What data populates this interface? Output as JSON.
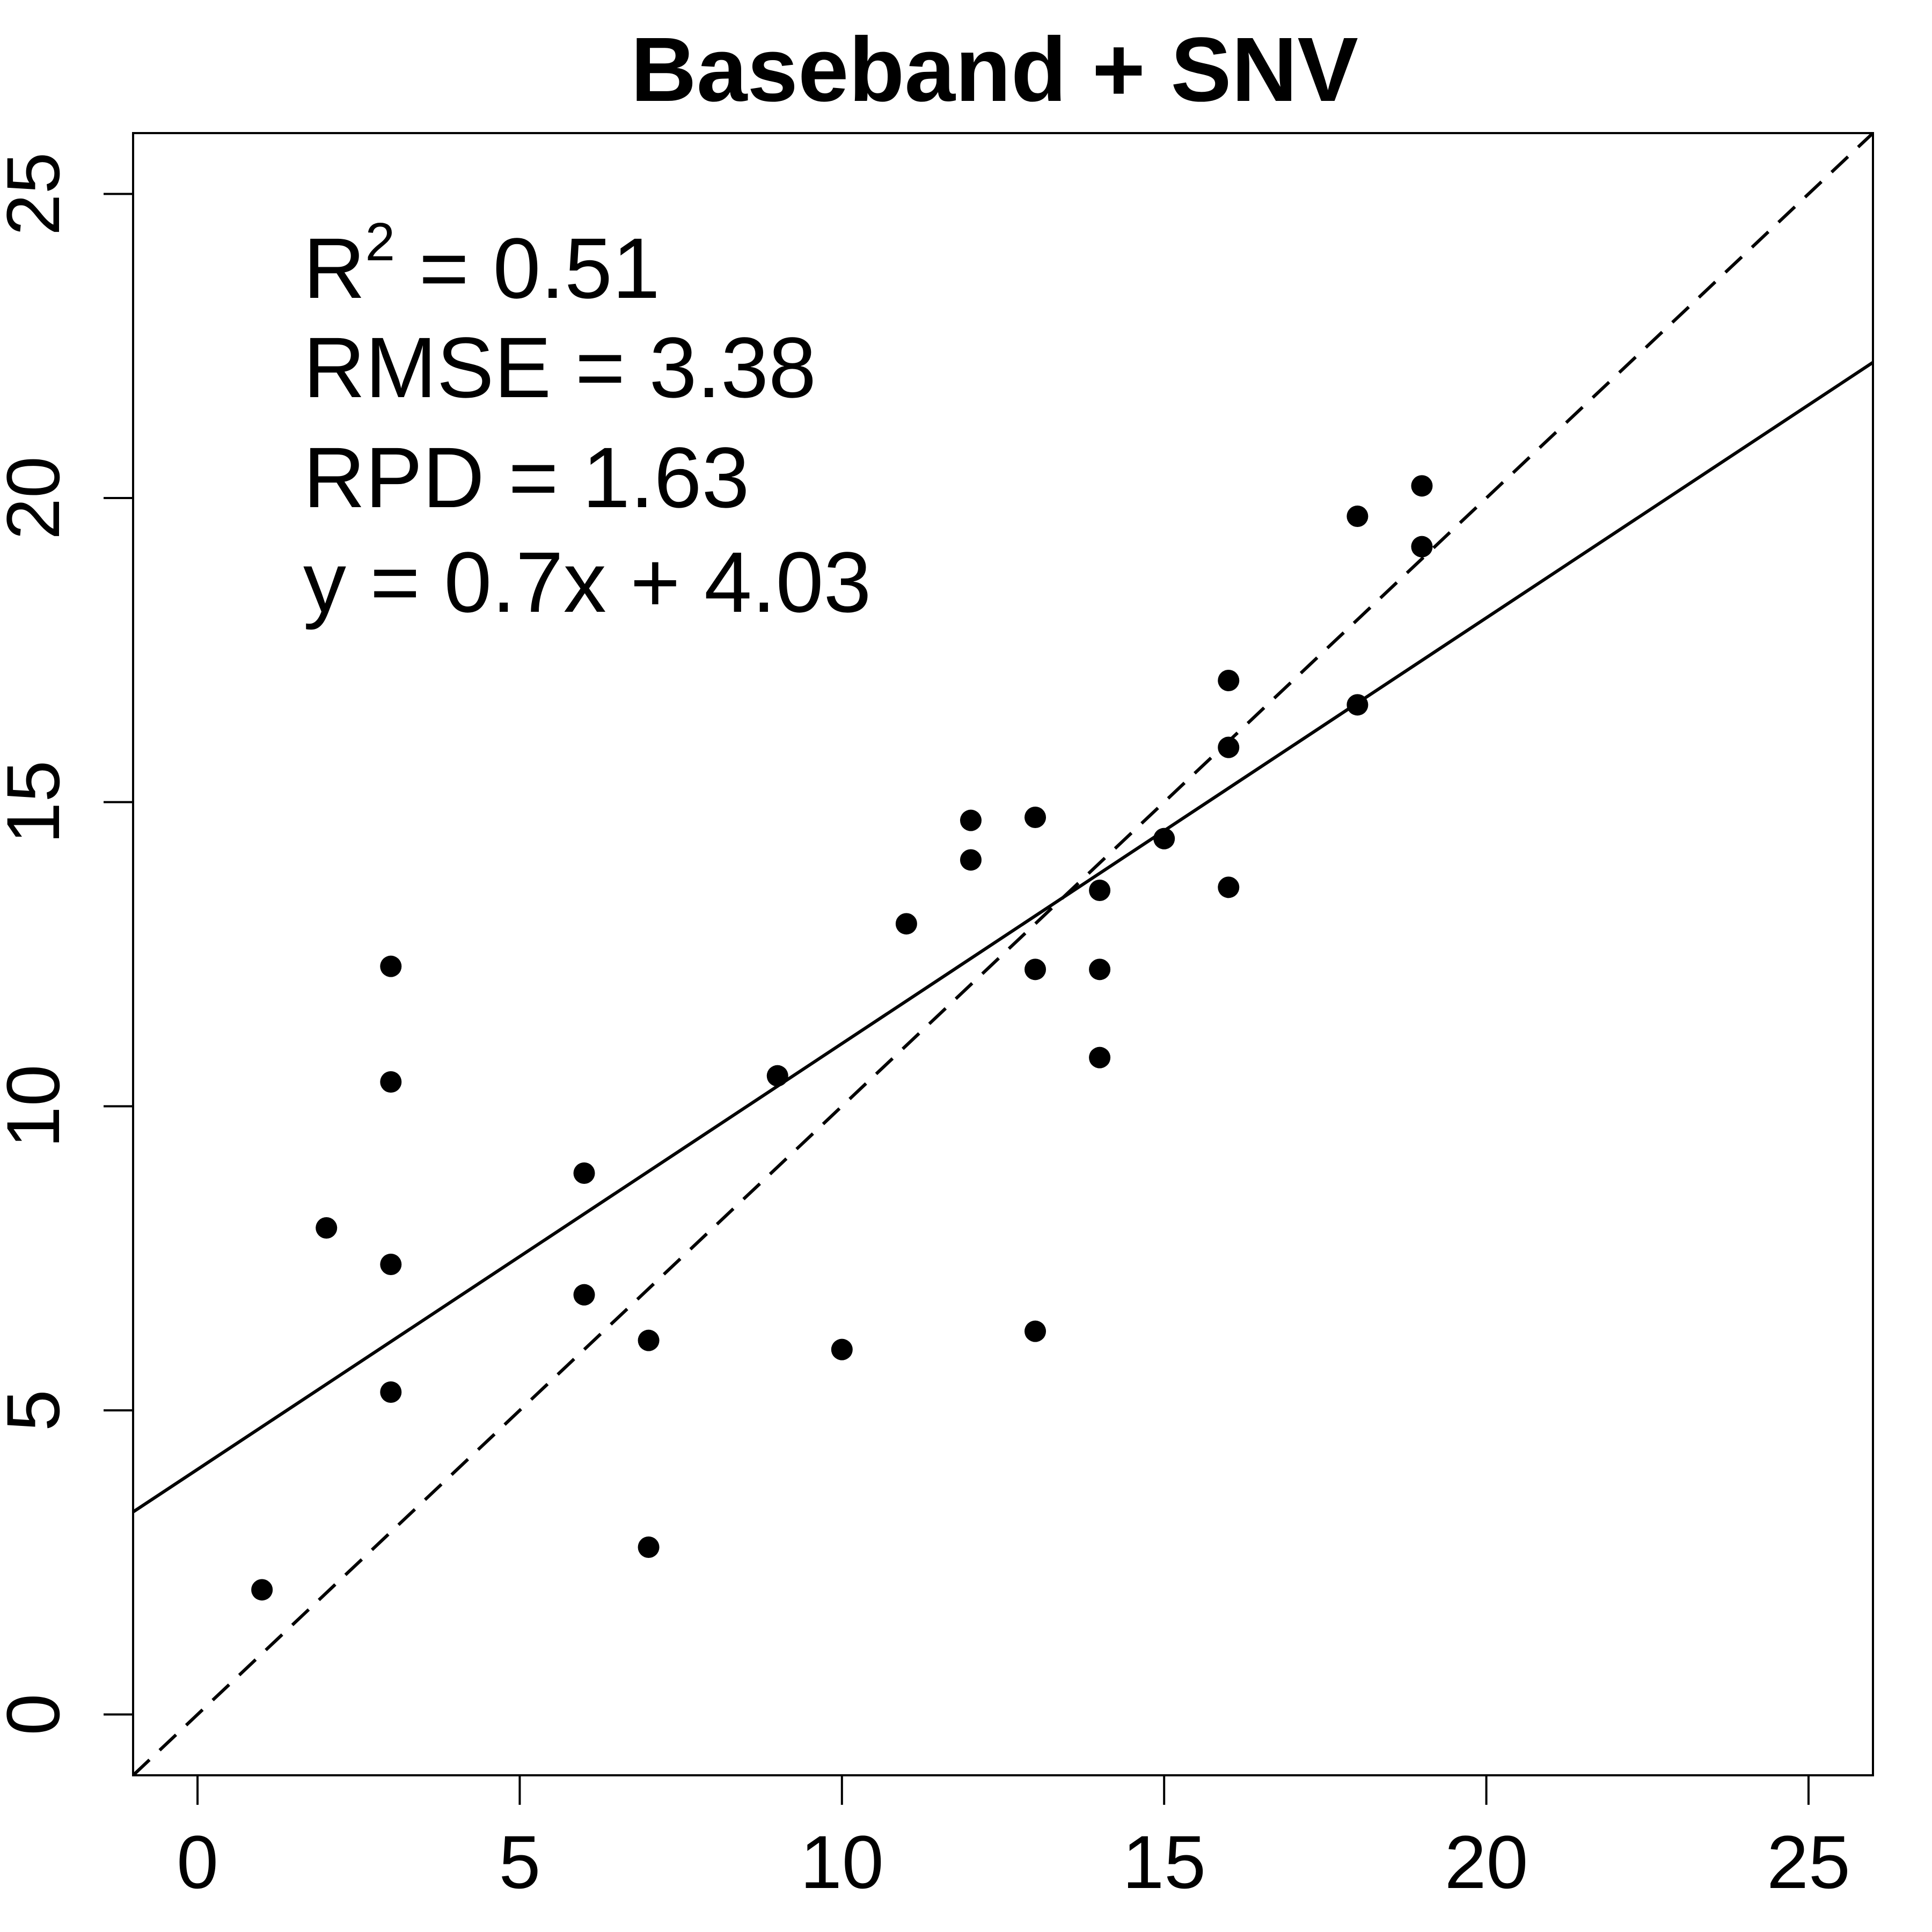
{
  "chart_data": {
    "type": "scatter",
    "title": "Baseband + SNV",
    "xlabel": "",
    "ylabel": "",
    "xlim": [
      -1,
      26
    ],
    "ylim": [
      -1,
      26
    ],
    "x_ticks": [
      0,
      5,
      10,
      15,
      20,
      25
    ],
    "y_ticks": [
      0,
      5,
      10,
      15,
      20,
      25
    ],
    "x_tick_labels": [
      "0",
      "5",
      "10",
      "15",
      "20",
      "25"
    ],
    "y_tick_labels": [
      "0",
      "5",
      "10",
      "15",
      "20",
      "25"
    ],
    "grid": false,
    "series": [
      {
        "points": [
          [
            1,
            2.05
          ],
          [
            2,
            8.0
          ],
          [
            3,
            12.3
          ],
          [
            3,
            10.4
          ],
          [
            3,
            7.4
          ],
          [
            3,
            5.3
          ],
          [
            6,
            8.9
          ],
          [
            6,
            6.9
          ],
          [
            7,
            6.15
          ],
          [
            7,
            2.75
          ],
          [
            9,
            10.5
          ],
          [
            10,
            6.0
          ],
          [
            11,
            13.0
          ],
          [
            12,
            14.7
          ],
          [
            12,
            14.05
          ],
          [
            13,
            14.75
          ],
          [
            13,
            12.25
          ],
          [
            13,
            6.3
          ],
          [
            14,
            13.55
          ],
          [
            14,
            12.25
          ],
          [
            14,
            10.8
          ],
          [
            15,
            14.4
          ],
          [
            16,
            17.0
          ],
          [
            16,
            15.9
          ],
          [
            16,
            13.6
          ],
          [
            18,
            19.7
          ],
          [
            18,
            16.6
          ],
          [
            19,
            20.2
          ],
          [
            19,
            19.2
          ]
        ]
      }
    ],
    "fit_line": {
      "slope": 0.7,
      "intercept": 4.03,
      "style": "solid"
    },
    "reference_line": {
      "slope": 1,
      "intercept": 0,
      "style": "dashed"
    },
    "annotations": {
      "r2_label": "R",
      "r2_sup": "2",
      "r2_value": " = 0.51",
      "rmse": "RMSE = 3.38",
      "rpd": "RPD = 1.63",
      "equation": "y = 0.7x + 4.03"
    }
  }
}
